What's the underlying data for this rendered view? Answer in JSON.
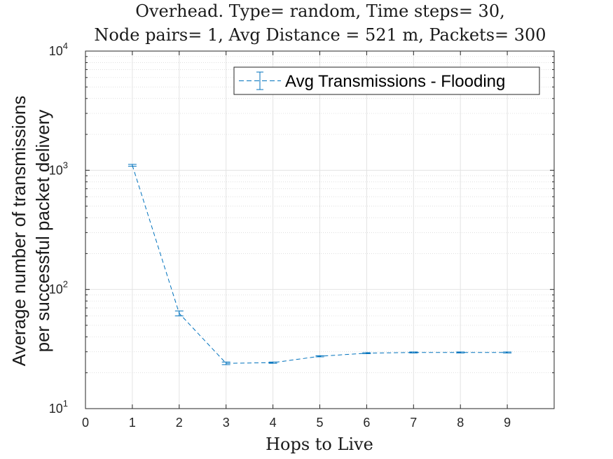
{
  "chart_data": {
    "type": "line",
    "title_lines": [
      "Overhead. Type= random, Time steps= 30,",
      "Node pairs= 1, Avg Distance = 521 m, Packets= 300"
    ],
    "xlabel": "Hops to Live",
    "ylabel_lines": [
      "Average number of transmissions",
      "per successful packet delivery"
    ],
    "xlim": [
      0,
      10
    ],
    "ylim": [
      10,
      10000
    ],
    "yscale": "log",
    "grid": true,
    "minor_grid": true,
    "x_ticks": [
      "0",
      "1",
      "2",
      "3",
      "4",
      "5",
      "6",
      "7",
      "8",
      "9"
    ],
    "y_ticks": [
      {
        "value": 10,
        "mantissa": "10",
        "exponent": "1"
      },
      {
        "value": 100,
        "mantissa": "10",
        "exponent": "2"
      },
      {
        "value": 1000,
        "mantissa": "10",
        "exponent": "3"
      },
      {
        "value": 10000,
        "mantissa": "10",
        "exponent": "4"
      }
    ],
    "legend_position": "top-right",
    "series": [
      {
        "name": "Avg Transmissions - Flooding",
        "color": "#0072BD",
        "line_style": "dashed",
        "x": [
          1,
          2,
          3,
          4,
          5,
          6,
          7,
          8,
          9
        ],
        "y": [
          1100,
          63,
          24,
          24.3,
          27.5,
          29.2,
          29.6,
          29.6,
          29.6
        ],
        "error": [
          20,
          3,
          0.6,
          0.3,
          0.3,
          0.3,
          0.3,
          0.3,
          0.3
        ]
      }
    ]
  }
}
